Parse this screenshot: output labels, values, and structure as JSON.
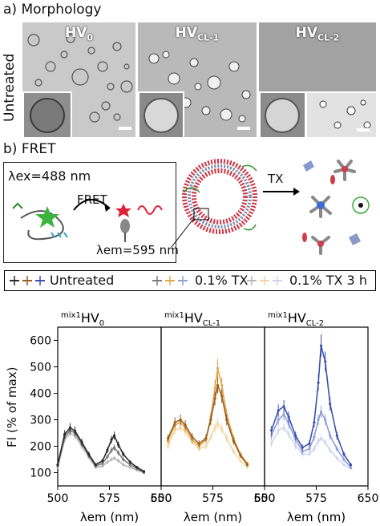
{
  "section_a": {
    "label": "a) Morphology"
  },
  "tem": {
    "row_label": "Untreated",
    "panels": [
      {
        "name": "HV",
        "sub": "0"
      },
      {
        "name": "HV",
        "sub": "CL-1"
      },
      {
        "name": "HV",
        "sub": "CL-2"
      }
    ]
  },
  "section_b": {
    "label": "b) FRET"
  },
  "fret_scheme": {
    "lambda_ex": "λex=488 nm",
    "fret_label": "FRET",
    "lambda_em": "λem=595 nm",
    "tx_label": "TX"
  },
  "legend": {
    "entries": [
      "Untreated",
      "0.1% TX",
      "0.1% TX 3 h"
    ]
  },
  "colors": {
    "hv0": [
      "#b5b5b5",
      "#7a7a7a",
      "#2b2b2b"
    ],
    "hvcl1": [
      "#f3d7a3",
      "#e3a74e",
      "#9a5e1c"
    ],
    "hvcl2": [
      "#cdd6ef",
      "#8f9fd8",
      "#3d52b0"
    ]
  },
  "chart_data": {
    "type": "line",
    "panels": [
      {
        "title_sup": "mix1",
        "title_main": "HV",
        "title_sub": "0",
        "series": [
          {
            "name": "Untreated",
            "x": [
              500,
              510,
              518,
              525,
              535,
              545,
              555,
              565,
              572,
              578,
              582,
              588,
              595,
              605,
              615,
              625
            ],
            "y": [
              130,
              245,
              270,
              258,
              215,
              170,
              130,
              145,
              185,
              225,
              240,
              205,
              170,
              140,
              120,
              105
            ]
          },
          {
            "name": "0.1% TX",
            "x": [
              500,
              510,
              518,
              525,
              535,
              545,
              555,
              565,
              572,
              578,
              582,
              588,
              595,
              605,
              615,
              625
            ],
            "y": [
              125,
              235,
              260,
              250,
              210,
              165,
              125,
              135,
              160,
              185,
              195,
              175,
              150,
              130,
              115,
              100
            ]
          },
          {
            "name": "0.1% TX 3 h",
            "x": [
              500,
              510,
              518,
              525,
              535,
              545,
              555,
              565,
              572,
              578,
              582,
              588,
              595,
              605,
              615,
              625
            ],
            "y": [
              120,
              225,
              250,
              240,
              200,
              160,
              120,
              125,
              140,
              150,
              155,
              145,
              130,
              120,
              110,
              100
            ]
          }
        ]
      },
      {
        "title_sup": "mix1",
        "title_main": "HV",
        "title_sub": "CL-1",
        "series": [
          {
            "name": "Untreated",
            "x": [
              510,
              520,
              528,
              535,
              545,
              555,
              565,
              572,
              578,
              582,
              588,
              595,
              605,
              615,
              625
            ],
            "y": [
              230,
              290,
              300,
              280,
              235,
              210,
              230,
              300,
              380,
              430,
              390,
              300,
              220,
              165,
              130
            ]
          },
          {
            "name": "0.1% TX",
            "x": [
              510,
              520,
              528,
              535,
              545,
              555,
              565,
              572,
              578,
              582,
              588,
              595,
              605,
              615,
              625
            ],
            "y": [
              220,
              280,
              290,
              270,
              225,
              200,
              225,
              310,
              420,
              495,
              430,
              320,
              230,
              170,
              135
            ]
          },
          {
            "name": "0.1% TX 3 h",
            "x": [
              510,
              520,
              528,
              535,
              545,
              555,
              565,
              572,
              578,
              582,
              588,
              595,
              605,
              615,
              625
            ],
            "y": [
              200,
              260,
              270,
              255,
              215,
              190,
              200,
              235,
              270,
              285,
              265,
              230,
              180,
              145,
              120
            ]
          }
        ]
      },
      {
        "title_sup": "mix1",
        "title_main": "HV",
        "title_sub": "CL-2",
        "series": [
          {
            "name": "Untreated",
            "x": [
              510,
              520,
              528,
              535,
              545,
              555,
              565,
              572,
              578,
              582,
              588,
              595,
              605,
              615,
              625
            ],
            "y": [
              260,
              335,
              350,
              310,
              240,
              195,
              210,
              290,
              440,
              580,
              520,
              360,
              240,
              170,
              130
            ]
          },
          {
            "name": "0.1% TX",
            "x": [
              510,
              520,
              528,
              535,
              545,
              555,
              565,
              572,
              578,
              582,
              588,
              595,
              605,
              615,
              625
            ],
            "y": [
              240,
              300,
              320,
              285,
              225,
              180,
              190,
              235,
              300,
              330,
              300,
              240,
              190,
              150,
              120
            ]
          },
          {
            "name": "0.1% TX 3 h",
            "x": [
              510,
              520,
              528,
              535,
              545,
              555,
              565,
              572,
              578,
              582,
              588,
              595,
              605,
              615,
              625
            ],
            "y": [
              210,
              260,
              270,
              245,
              200,
              170,
              170,
              190,
              220,
              230,
              215,
              185,
              155,
              130,
              115
            ]
          }
        ]
      }
    ],
    "xlim": [
      500,
      650
    ],
    "ylim": [
      50,
      650
    ],
    "xticks": [
      "500",
      "575",
      "650"
    ],
    "yticks": [
      "100",
      "200",
      "300",
      "400",
      "500",
      "600"
    ],
    "xlabel": "λem (nm)",
    "ylabel": "FI (% of max)"
  }
}
